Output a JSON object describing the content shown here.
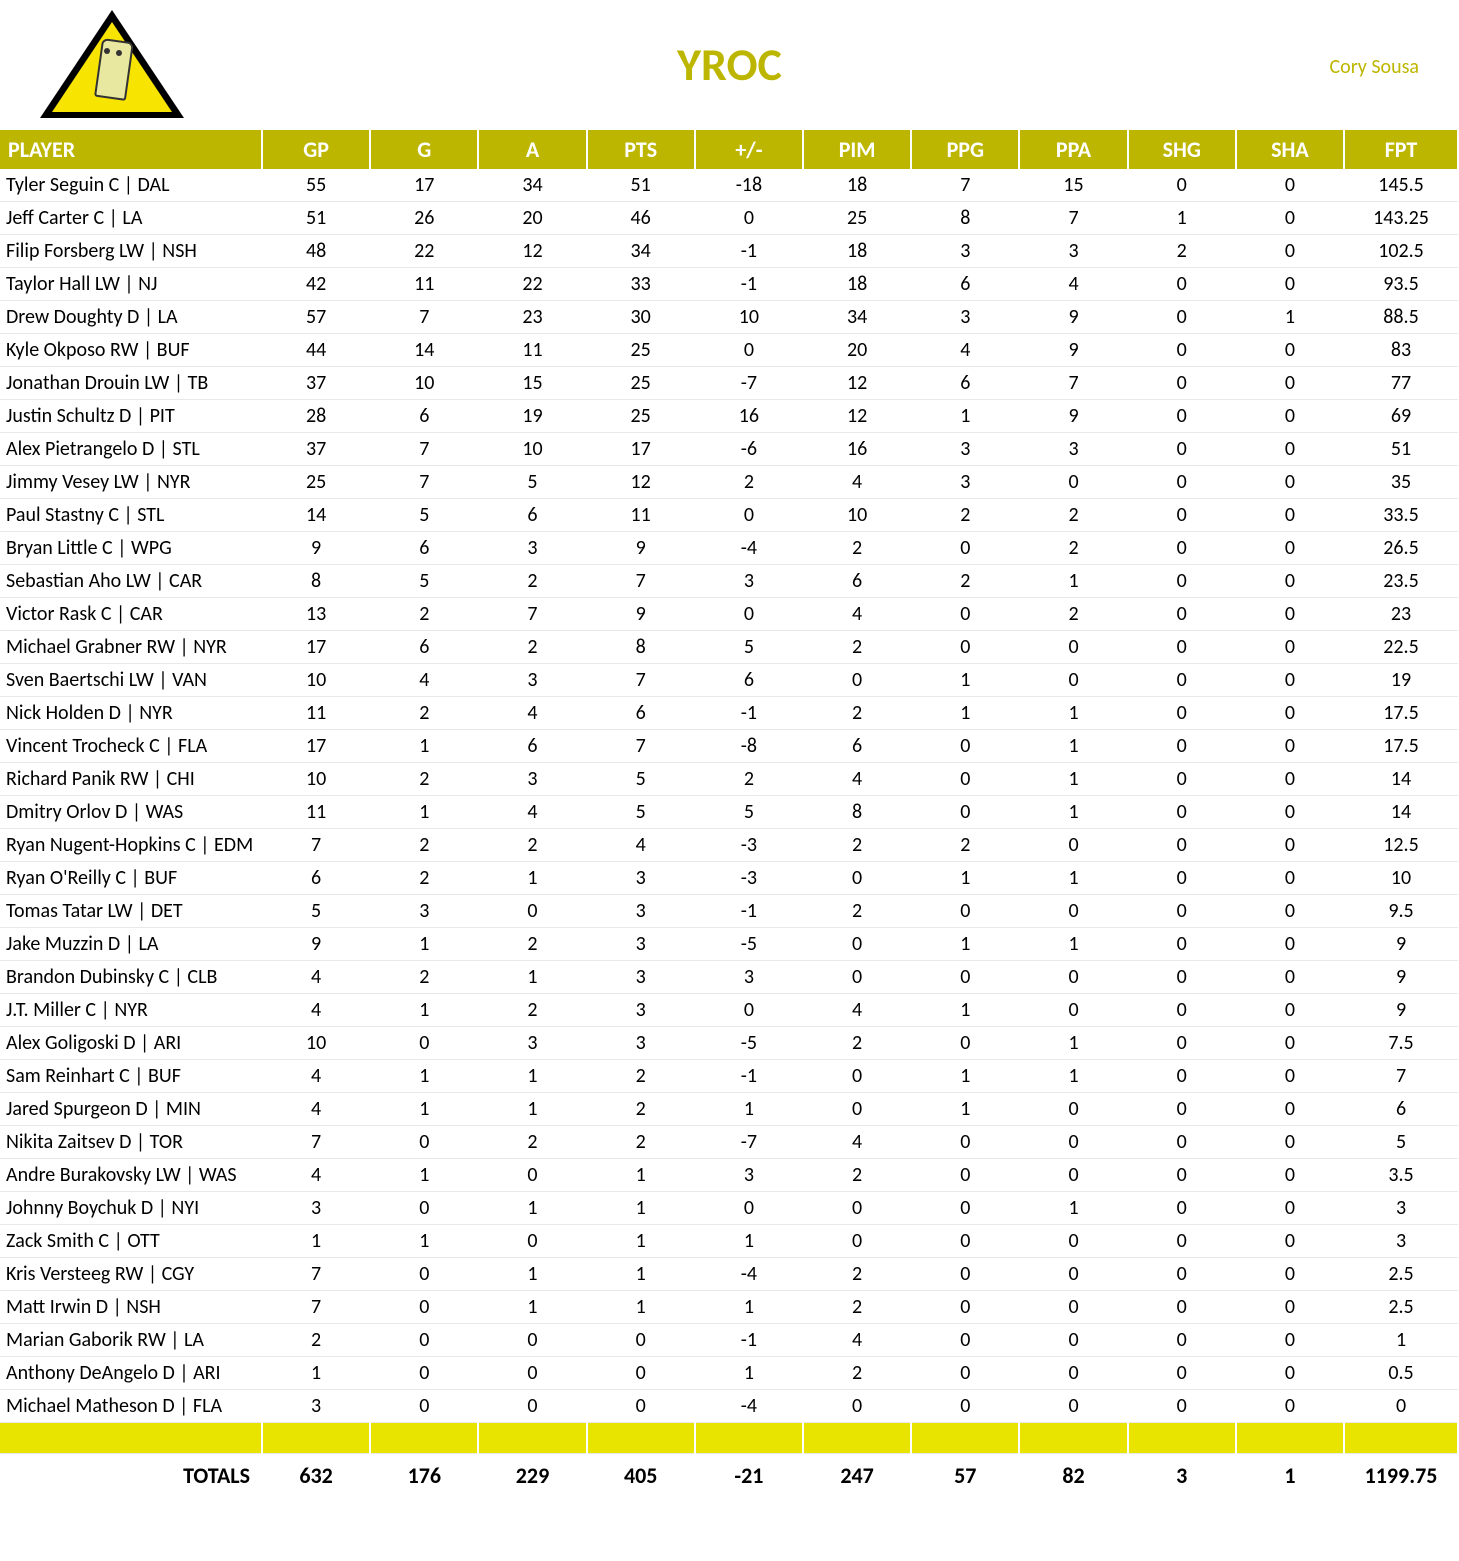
{
  "header": {
    "title": "YROC",
    "owner": "Cory Sousa",
    "accent_color": "#bdb600",
    "logo_triangle_fill": "#f7e400",
    "logo_triangle_border": "#000000"
  },
  "table": {
    "columns": [
      "PLAYER",
      "GP",
      "G",
      "A",
      "PTS",
      "+/-",
      "PIM",
      "PPG",
      "PPA",
      "SHG",
      "SHA",
      "FPT"
    ],
    "header_bg": "#bdb600",
    "header_text_color": "#ffffff",
    "blank_row_bg": "#e8e400",
    "row_border_color": "#e8e8e8",
    "font_family": "Calibri",
    "body_font_size": 20,
    "header_font_size": 22,
    "rows": [
      [
        "Tyler Seguin C | DAL",
        55,
        17,
        34,
        51,
        -18,
        18,
        7,
        15,
        0,
        0,
        145.5
      ],
      [
        "Jeff Carter C | LA",
        51,
        26,
        20,
        46,
        0,
        25,
        8,
        7,
        1,
        0,
        143.25
      ],
      [
        "Filip Forsberg LW | NSH",
        48,
        22,
        12,
        34,
        -1,
        18,
        3,
        3,
        2,
        0,
        102.5
      ],
      [
        "Taylor Hall LW | NJ",
        42,
        11,
        22,
        33,
        -1,
        18,
        6,
        4,
        0,
        0,
        93.5
      ],
      [
        "Drew Doughty D | LA",
        57,
        7,
        23,
        30,
        10,
        34,
        3,
        9,
        0,
        1,
        88.5
      ],
      [
        "Kyle Okposo RW | BUF",
        44,
        14,
        11,
        25,
        0,
        20,
        4,
        9,
        0,
        0,
        83
      ],
      [
        "Jonathan Drouin LW | TB",
        37,
        10,
        15,
        25,
        -7,
        12,
        6,
        7,
        0,
        0,
        77
      ],
      [
        "Justin Schultz D | PIT",
        28,
        6,
        19,
        25,
        16,
        12,
        1,
        9,
        0,
        0,
        69
      ],
      [
        "Alex Pietrangelo D | STL",
        37,
        7,
        10,
        17,
        -6,
        16,
        3,
        3,
        0,
        0,
        51
      ],
      [
        "Jimmy Vesey LW | NYR",
        25,
        7,
        5,
        12,
        2,
        4,
        3,
        0,
        0,
        0,
        35
      ],
      [
        "Paul Stastny C | STL",
        14,
        5,
        6,
        11,
        0,
        10,
        2,
        2,
        0,
        0,
        33.5
      ],
      [
        "Bryan Little C | WPG",
        9,
        6,
        3,
        9,
        -4,
        2,
        0,
        2,
        0,
        0,
        26.5
      ],
      [
        "Sebastian Aho LW | CAR",
        8,
        5,
        2,
        7,
        3,
        6,
        2,
        1,
        0,
        0,
        23.5
      ],
      [
        "Victor Rask C | CAR",
        13,
        2,
        7,
        9,
        0,
        4,
        0,
        2,
        0,
        0,
        23
      ],
      [
        "Michael Grabner RW | NYR",
        17,
        6,
        2,
        8,
        5,
        2,
        0,
        0,
        0,
        0,
        22.5
      ],
      [
        "Sven Baertschi LW | VAN",
        10,
        4,
        3,
        7,
        6,
        0,
        1,
        0,
        0,
        0,
        19
      ],
      [
        "Nick Holden D | NYR",
        11,
        2,
        4,
        6,
        -1,
        2,
        1,
        1,
        0,
        0,
        17.5
      ],
      [
        "Vincent Trocheck C | FLA",
        17,
        1,
        6,
        7,
        -8,
        6,
        0,
        1,
        0,
        0,
        17.5
      ],
      [
        "Richard Panik RW | CHI",
        10,
        2,
        3,
        5,
        2,
        4,
        0,
        1,
        0,
        0,
        14
      ],
      [
        "Dmitry Orlov D | WAS",
        11,
        1,
        4,
        5,
        5,
        8,
        0,
        1,
        0,
        0,
        14
      ],
      [
        "Ryan Nugent-Hopkins C | EDM",
        7,
        2,
        2,
        4,
        -3,
        2,
        2,
        0,
        0,
        0,
        12.5
      ],
      [
        "Ryan O'Reilly C | BUF",
        6,
        2,
        1,
        3,
        -3,
        0,
        1,
        1,
        0,
        0,
        10
      ],
      [
        "Tomas Tatar LW | DET",
        5,
        3,
        0,
        3,
        -1,
        2,
        0,
        0,
        0,
        0,
        9.5
      ],
      [
        "Jake Muzzin D | LA",
        9,
        1,
        2,
        3,
        -5,
        0,
        1,
        1,
        0,
        0,
        9
      ],
      [
        "Brandon Dubinsky C | CLB",
        4,
        2,
        1,
        3,
        3,
        0,
        0,
        0,
        0,
        0,
        9
      ],
      [
        "J.T. Miller C | NYR",
        4,
        1,
        2,
        3,
        0,
        4,
        1,
        0,
        0,
        0,
        9
      ],
      [
        "Alex Goligoski D | ARI",
        10,
        0,
        3,
        3,
        -5,
        2,
        0,
        1,
        0,
        0,
        7.5
      ],
      [
        "Sam Reinhart C | BUF",
        4,
        1,
        1,
        2,
        -1,
        0,
        1,
        1,
        0,
        0,
        7
      ],
      [
        "Jared Spurgeon D | MIN",
        4,
        1,
        1,
        2,
        1,
        0,
        1,
        0,
        0,
        0,
        6
      ],
      [
        "Nikita Zaitsev D | TOR",
        7,
        0,
        2,
        2,
        -7,
        4,
        0,
        0,
        0,
        0,
        5
      ],
      [
        "Andre Burakovsky LW | WAS",
        4,
        1,
        0,
        1,
        3,
        2,
        0,
        0,
        0,
        0,
        3.5
      ],
      [
        "Johnny Boychuk D | NYI",
        3,
        0,
        1,
        1,
        0,
        0,
        0,
        1,
        0,
        0,
        3
      ],
      [
        "Zack Smith C | OTT",
        1,
        1,
        0,
        1,
        1,
        0,
        0,
        0,
        0,
        0,
        3
      ],
      [
        "Kris Versteeg RW | CGY",
        7,
        0,
        1,
        1,
        -4,
        2,
        0,
        0,
        0,
        0,
        2.5
      ],
      [
        "Matt Irwin D | NSH",
        7,
        0,
        1,
        1,
        1,
        2,
        0,
        0,
        0,
        0,
        2.5
      ],
      [
        "Marian Gaborik RW | LA",
        2,
        0,
        0,
        0,
        -1,
        4,
        0,
        0,
        0,
        0,
        1
      ],
      [
        "Anthony DeAngelo D | ARI",
        1,
        0,
        0,
        0,
        1,
        2,
        0,
        0,
        0,
        0,
        0.5
      ],
      [
        "Michael Matheson D | FLA",
        3,
        0,
        0,
        0,
        -4,
        0,
        0,
        0,
        0,
        0,
        0
      ]
    ],
    "totals_label": "TOTALS",
    "totals": [
      632,
      176,
      229,
      405,
      -21,
      247,
      57,
      82,
      3,
      1,
      1199.75
    ]
  }
}
